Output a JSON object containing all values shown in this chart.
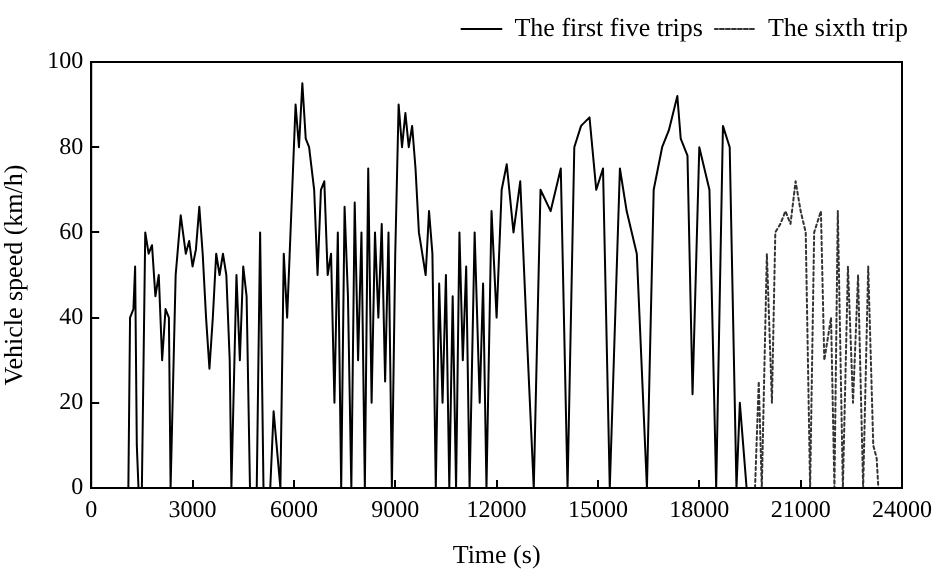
{
  "chart_data": {
    "type": "line",
    "xlabel": "Time (s)",
    "ylabel": "Vehicle speed (km/h)",
    "xlim": [
      0,
      24000
    ],
    "xticks": [
      0,
      3000,
      6000,
      9000,
      12000,
      15000,
      18000,
      21000,
      24000
    ],
    "ylim": [
      0,
      100
    ],
    "yticks": [
      0,
      20,
      40,
      60,
      80,
      100
    ],
    "grid": false,
    "legend": "top right",
    "marker": "none",
    "series": [
      {
        "name": "The first five trips",
        "color": "#000000",
        "line_style": "solid",
        "x": [
          0,
          1100,
          1150,
          1250,
          1300,
          1350,
          1400,
          1500,
          1600,
          1700,
          1800,
          1900,
          2000,
          2100,
          2200,
          2300,
          2350,
          2500,
          2650,
          2800,
          2900,
          3000,
          3100,
          3200,
          3300,
          3400,
          3500,
          3600,
          3700,
          3800,
          3900,
          4000,
          4100,
          4150,
          4300,
          4400,
          4500,
          4600,
          4700,
          4900,
          5000,
          5100,
          5300,
          5400,
          5600,
          5700,
          5800,
          5950,
          6050,
          6150,
          6250,
          6350,
          6450,
          6600,
          6700,
          6800,
          6900,
          7000,
          7100,
          7200,
          7300,
          7400,
          7500,
          7600,
          7700,
          7800,
          7900,
          8000,
          8100,
          8200,
          8300,
          8400,
          8500,
          8600,
          8700,
          8800,
          8900,
          9000,
          9100,
          9200,
          9300,
          9400,
          9500,
          9600,
          9700,
          9800,
          9900,
          10000,
          10100,
          10200,
          10300,
          10400,
          10500,
          10600,
          10700,
          10800,
          10900,
          11000,
          11100,
          11200,
          11350,
          11500,
          11600,
          11700,
          11850,
          12000,
          12150,
          12300,
          12500,
          12700,
          12900,
          13100,
          13300,
          13600,
          13900,
          14100,
          14300,
          14500,
          14750,
          14950,
          15150,
          15350,
          15650,
          15850,
          16150,
          16450,
          16650,
          16900,
          17100,
          17350,
          17450,
          17650,
          17800,
          18000,
          18300,
          18500,
          18700,
          18900,
          19100,
          19200,
          19300,
          19400,
          19500
        ],
        "values": [
          0,
          0,
          40,
          42,
          52,
          10,
          0,
          0,
          60,
          55,
          57,
          45,
          50,
          30,
          42,
          40,
          0,
          50,
          64,
          55,
          58,
          52,
          56,
          66,
          55,
          40,
          28,
          40,
          55,
          50,
          55,
          50,
          30,
          0,
          50,
          30,
          52,
          45,
          0,
          0,
          60,
          0,
          0,
          18,
          0,
          55,
          40,
          70,
          90,
          80,
          95,
          82,
          80,
          70,
          50,
          70,
          72,
          50,
          55,
          20,
          60,
          0,
          66,
          45,
          0,
          67,
          30,
          60,
          0,
          75,
          20,
          60,
          40,
          62,
          25,
          60,
          0,
          55,
          90,
          80,
          88,
          80,
          85,
          75,
          60,
          55,
          50,
          65,
          55,
          0,
          48,
          20,
          50,
          0,
          45,
          0,
          60,
          30,
          52,
          0,
          60,
          20,
          48,
          0,
          65,
          40,
          70,
          76,
          60,
          72,
          35,
          0,
          70,
          65,
          75,
          0,
          80,
          85,
          87,
          70,
          75,
          0,
          75,
          65,
          55,
          0,
          70,
          80,
          84,
          92,
          82,
          78,
          22,
          80,
          70,
          0,
          85,
          80,
          0,
          20,
          10,
          0,
          0
        ]
      },
      {
        "name": "The sixth trip",
        "color": "#333333",
        "line_style": "dotted",
        "x": [
          19650,
          19760,
          19850,
          20000,
          20150,
          20250,
          20400,
          20550,
          20700,
          20850,
          21000,
          21150,
          21280,
          21400,
          21600,
          21700,
          21900,
          22000,
          22100,
          22250,
          22400,
          22550,
          22700,
          22850,
          23000,
          23150,
          23250,
          23300
        ],
        "values": [
          0,
          25,
          0,
          55,
          20,
          60,
          62,
          65,
          62,
          72,
          65,
          60,
          0,
          60,
          65,
          30,
          40,
          0,
          65,
          0,
          52,
          20,
          50,
          0,
          52,
          10,
          7,
          0
        ]
      }
    ]
  }
}
